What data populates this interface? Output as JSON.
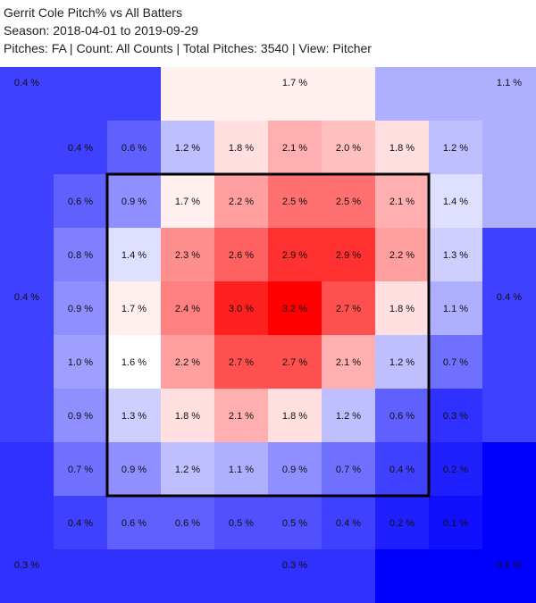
{
  "header": {
    "title": "Gerrit Cole Pitch% vs All Batters",
    "season": "Season: 2018-04-01 to 2019-09-29",
    "filters": "Pitches: FA | Count: All Counts | Total Pitches: 3540 | View: Pitcher"
  },
  "chart_data": {
    "type": "heatmap",
    "title": "Gerrit Cole Pitch% vs All Batters",
    "unit": "%",
    "color_scale": {
      "low": "#0000ff",
      "mid": "#ffffff",
      "high": "#ff0000"
    },
    "outer_zones": [
      {
        "name": "top-left",
        "value": 0.4,
        "label": "0.4 %"
      },
      {
        "name": "top-center",
        "value": 1.7,
        "label": "1.7 %"
      },
      {
        "name": "top-right",
        "value": 1.1,
        "label": "1.1 %"
      },
      {
        "name": "middle-left",
        "value": 0.4,
        "label": "0.4 %"
      },
      {
        "name": "middle-right",
        "value": 0.4,
        "label": "0.4 %"
      },
      {
        "name": "bottom-left",
        "value": 0.3,
        "label": "0.3 %"
      },
      {
        "name": "bottom-center",
        "value": 0.3,
        "label": "0.3 %"
      },
      {
        "name": "bottom-right",
        "value": 0.0,
        "label": "0.0 %"
      }
    ],
    "grid": [
      [
        0.4,
        0.6,
        1.2,
        1.8,
        2.1,
        2.0,
        1.8,
        1.2
      ],
      [
        0.6,
        0.9,
        1.7,
        2.2,
        2.5,
        2.5,
        2.1,
        1.4
      ],
      [
        0.8,
        1.4,
        2.3,
        2.6,
        2.9,
        2.9,
        2.2,
        1.3
      ],
      [
        0.9,
        1.7,
        2.4,
        3.0,
        3.2,
        2.7,
        1.8,
        1.1
      ],
      [
        1.0,
        1.6,
        2.2,
        2.7,
        2.7,
        2.1,
        1.2,
        0.7
      ],
      [
        0.9,
        1.3,
        1.8,
        2.1,
        1.8,
        1.2,
        0.6,
        0.3
      ],
      [
        0.7,
        0.9,
        1.2,
        1.1,
        0.9,
        0.7,
        0.4,
        0.2
      ],
      [
        0.4,
        0.6,
        0.6,
        0.5,
        0.5,
        0.4,
        0.2,
        0.1
      ]
    ],
    "value_range": [
      0.0,
      3.2
    ],
    "strike_zone": "inner 6x6 cells (rows 2-7, columns 2-7)"
  }
}
